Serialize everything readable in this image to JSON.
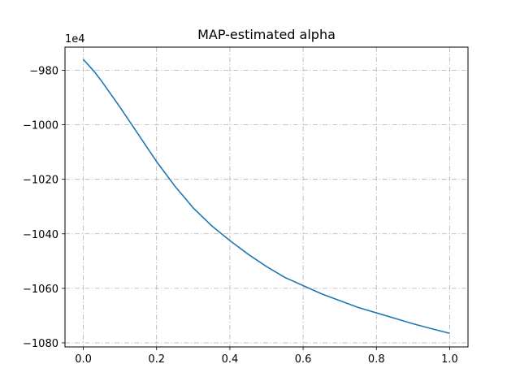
{
  "chart_data": {
    "type": "line",
    "title": "MAP-estimated alpha",
    "xlabel": "",
    "ylabel": "",
    "y_offset_label": "1e4",
    "xlim": [
      -0.05,
      1.05
    ],
    "ylim": [
      -1081.5,
      -971.5
    ],
    "x_ticks": [
      0.0,
      0.2,
      0.4,
      0.6,
      0.8,
      1.0
    ],
    "x_tick_labels": [
      "0.0",
      "0.2",
      "0.4",
      "0.6",
      "0.8",
      "1.0"
    ],
    "y_ticks": [
      -980,
      -1000,
      -1020,
      -1040,
      -1060,
      -1080
    ],
    "y_tick_labels": [
      "−980",
      "−1000",
      "−1020",
      "−1040",
      "−1060",
      "−1080"
    ],
    "grid": true,
    "grid_style": "dash-dot",
    "colors": {
      "line": "#1f77b4",
      "grid": "#b0b0b0",
      "axes": "#000000"
    },
    "series": [
      {
        "x": [
          0.0,
          0.03,
          0.05,
          0.1,
          0.15,
          0.2,
          0.25,
          0.3,
          0.35,
          0.4,
          0.45,
          0.5,
          0.55,
          0.6,
          0.65,
          0.7,
          0.75,
          0.8,
          0.85,
          0.9,
          0.95,
          1.0
        ],
        "values": [
          -976.0,
          -980.5,
          -984.0,
          -993.5,
          -1003.5,
          -1013.5,
          -1022.5,
          -1030.5,
          -1037.0,
          -1042.5,
          -1047.5,
          -1052.0,
          -1056.0,
          -1059.0,
          -1062.0,
          -1064.5,
          -1067.0,
          -1069.0,
          -1071.0,
          -1073.0,
          -1074.8,
          -1076.5
        ]
      }
    ]
  }
}
